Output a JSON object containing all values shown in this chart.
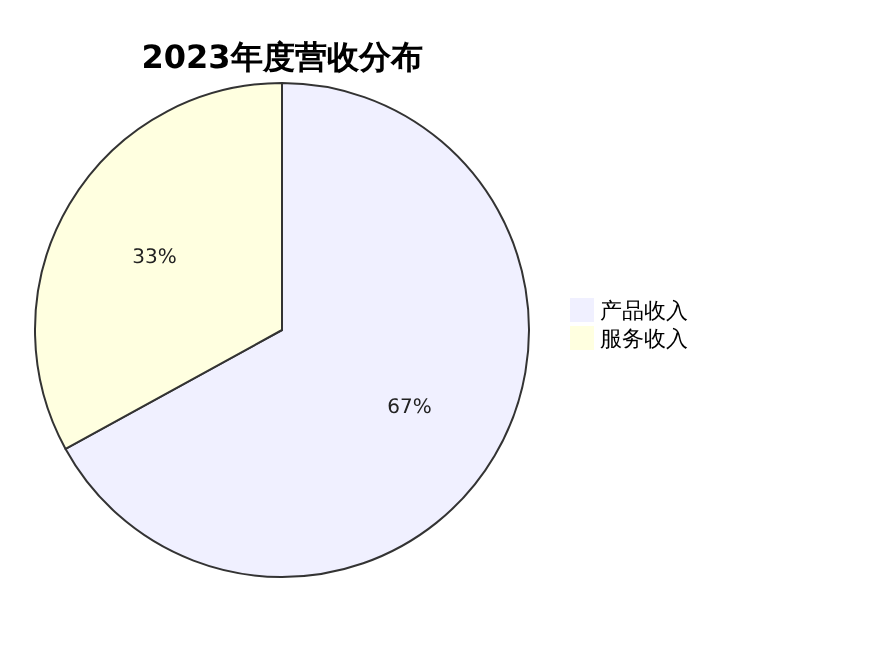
{
  "chart_data": {
    "type": "pie",
    "title": "2023年度营收分布",
    "categories": [
      "产品收入",
      "服务收入"
    ],
    "values": [
      67,
      33
    ],
    "colors": [
      "#f0f0ff",
      "#ffffe0"
    ],
    "value_labels": [
      "67%",
      "33%"
    ],
    "legend": "right"
  }
}
